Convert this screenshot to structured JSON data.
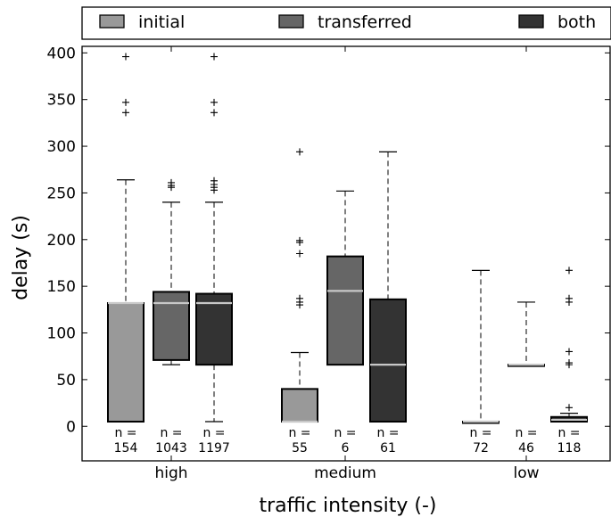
{
  "chart_data": {
    "type": "boxplot",
    "xlabel": "traffic intensity (-)",
    "ylabel": "delay (s)",
    "ylim": [
      -37,
      407
    ],
    "yticks": [
      0,
      50,
      100,
      150,
      200,
      250,
      300,
      350,
      400
    ],
    "grid": false,
    "legend_position": "top",
    "categories": [
      "high",
      "medium",
      "low"
    ],
    "series": [
      {
        "name": "initial",
        "color": "#999999"
      },
      {
        "name": "transferred",
        "color": "#666666"
      },
      {
        "name": "both",
        "color": "#333333"
      }
    ],
    "boxes": [
      {
        "category": "high",
        "series": "initial",
        "q1": 5,
        "median": 132,
        "q3": 132,
        "whisker_low": 5,
        "whisker_high": 264,
        "outliers": [
          336,
          347,
          396
        ],
        "n_label": "n =",
        "n_value": "154"
      },
      {
        "category": "high",
        "series": "transferred",
        "q1": 71,
        "median": 132,
        "q3": 144,
        "whisker_low": 66,
        "whisker_high": 240,
        "outliers": [
          256,
          258,
          261
        ],
        "n_label": "n =",
        "n_value": "1043"
      },
      {
        "category": "high",
        "series": "both",
        "q1": 66,
        "median": 132,
        "q3": 142,
        "whisker_low": 5,
        "whisker_high": 240,
        "outliers": [
          253,
          256,
          259,
          263,
          336,
          347,
          396
        ],
        "n_label": "n =",
        "n_value": "1197"
      },
      {
        "category": "medium",
        "series": "initial",
        "q1": 5,
        "median": 5,
        "q3": 40,
        "whisker_low": 5,
        "whisker_high": 79,
        "outliers": [
          130,
          133,
          137,
          185,
          197,
          199,
          294
        ],
        "n_label": "n =",
        "n_value": "55"
      },
      {
        "category": "medium",
        "series": "transferred",
        "q1": 66,
        "median": 145,
        "q3": 182,
        "whisker_low": 66,
        "whisker_high": 252,
        "outliers": [],
        "n_label": "n =",
        "n_value": "6"
      },
      {
        "category": "medium",
        "series": "both",
        "q1": 5,
        "median": 66,
        "q3": 136,
        "whisker_low": 5,
        "whisker_high": 294,
        "outliers": [],
        "n_label": "n =",
        "n_value": "61"
      },
      {
        "category": "low",
        "series": "initial",
        "q1": 5,
        "median": 5,
        "q3": 5,
        "whisker_low": 5,
        "whisker_high": 167,
        "outliers": [],
        "n_label": "n =",
        "n_value": "72"
      },
      {
        "category": "low",
        "series": "transferred",
        "q1": 66,
        "median": 66,
        "q3": 66,
        "whisker_low": 66,
        "whisker_high": 133,
        "outliers": [],
        "n_label": "n =",
        "n_value": "46"
      },
      {
        "category": "low",
        "series": "both",
        "q1": 5,
        "median": 7,
        "q3": 10,
        "whisker_low": 5,
        "whisker_high": 14,
        "outliers": [
          20,
          66,
          68,
          80,
          133,
          137,
          167
        ],
        "n_label": "n =",
        "n_value": "118"
      }
    ]
  }
}
